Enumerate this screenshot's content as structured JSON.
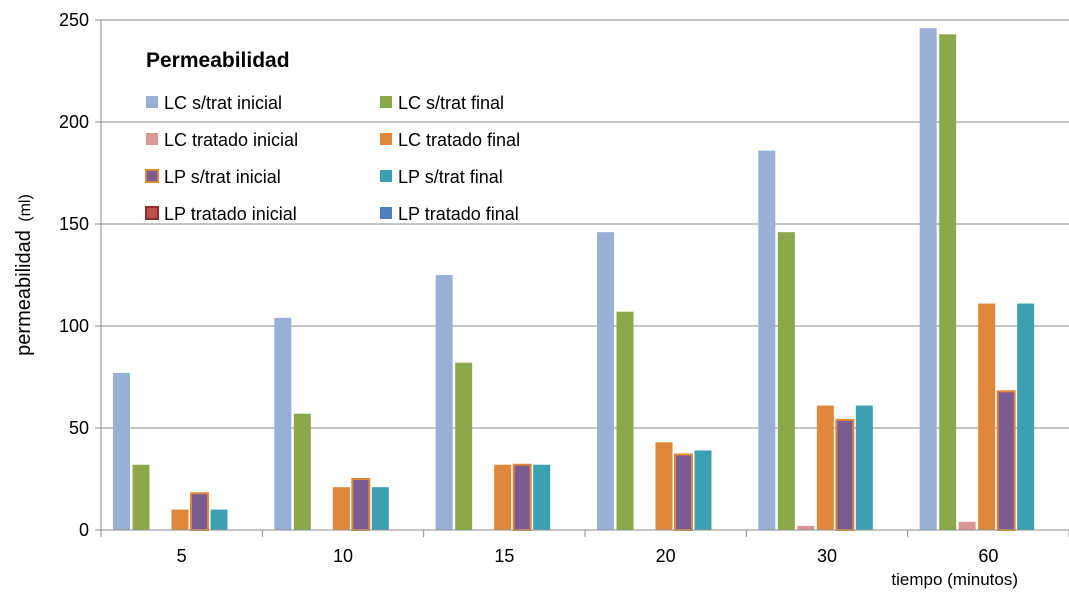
{
  "chart_data": {
    "type": "bar",
    "title": "Permeabilidad",
    "ylabel_main": "permeabilidad",
    "ylabel_unit": "(ml)",
    "xlabel": "tiempo (minutos)",
    "categories": [
      "5",
      "10",
      "15",
      "20",
      "30",
      "60"
    ],
    "ylim": [
      0,
      250
    ],
    "yticks": [
      0,
      50,
      100,
      150,
      200,
      250
    ],
    "grid": true,
    "legend_position": "top-left",
    "series": [
      {
        "name": "LC s/trat inicial",
        "color": "#9aafd6",
        "border": "#9aafd6",
        "values": [
          77,
          104,
          125,
          146,
          186,
          246
        ]
      },
      {
        "name": "LC s/trat final",
        "color": "#8ba94a",
        "border": "#8ba94a",
        "values": [
          32,
          57,
          82,
          107,
          146,
          243
        ]
      },
      {
        "name": "LC tratado inicial",
        "color": "#d99694",
        "border": "#d99694",
        "values": [
          0,
          0,
          0,
          0,
          2,
          4
        ]
      },
      {
        "name": "LC tratado final",
        "color": "#e0873a",
        "border": "#e0873a",
        "values": [
          10,
          21,
          32,
          43,
          61,
          111
        ]
      },
      {
        "name": "LP s/trat inicial",
        "color": "#7a5c93",
        "border": "#e0873a",
        "values": [
          18,
          25,
          32,
          37,
          54,
          68
        ]
      },
      {
        "name": "LP s/trat final",
        "color": "#3ca0b2",
        "border": "#3ca0b2",
        "values": [
          10,
          21,
          32,
          39,
          61,
          111
        ]
      },
      {
        "name": "LP tratado inicial",
        "color": "#c0504d",
        "border": "#8b2d2a",
        "values": [
          0,
          0,
          0,
          0,
          0,
          0
        ]
      },
      {
        "name": "LP tratado final",
        "color": "#4f7fbf",
        "border": "#4f7fbf",
        "values": [
          0,
          0,
          0,
          0,
          0,
          0
        ]
      }
    ]
  }
}
